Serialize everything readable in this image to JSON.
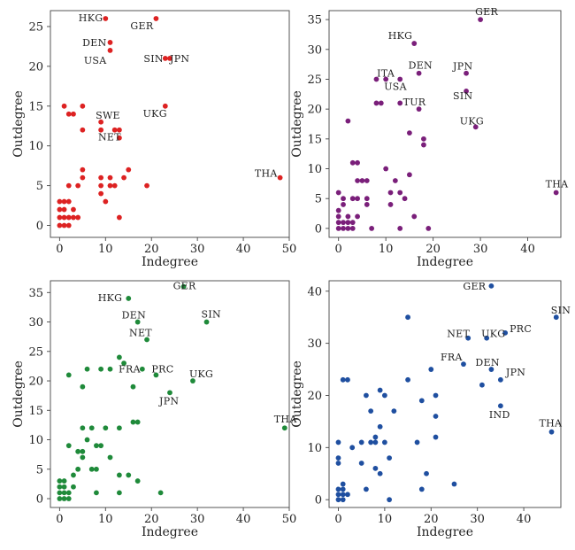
{
  "chart_data": [
    {
      "type": "scatter",
      "xlabel": "Indegree",
      "ylabel": "Outdegree",
      "xlim": [
        -2,
        50
      ],
      "ylim": [
        -1.5,
        27
      ],
      "xticks": [
        0,
        10,
        20,
        30,
        40,
        50
      ],
      "yticks": [
        0,
        5,
        10,
        15,
        20,
        25
      ],
      "color": "#dd2222",
      "points": [
        [
          0,
          0
        ],
        [
          1,
          0
        ],
        [
          2,
          0
        ],
        [
          0,
          1
        ],
        [
          1,
          1
        ],
        [
          2,
          1
        ],
        [
          3,
          1
        ],
        [
          4,
          1
        ],
        [
          0,
          2
        ],
        [
          1,
          2
        ],
        [
          3,
          2
        ],
        [
          0,
          3
        ],
        [
          1,
          3
        ],
        [
          2,
          5
        ],
        [
          4,
          5
        ],
        [
          2,
          3
        ],
        [
          5,
          6
        ],
        [
          5,
          7
        ],
        [
          9,
          4
        ],
        [
          9,
          5
        ],
        [
          9,
          6
        ],
        [
          10,
          3
        ],
        [
          11,
          5
        ],
        [
          11,
          6
        ],
        [
          12,
          5
        ],
        [
          13,
          1
        ],
        [
          14,
          6
        ],
        [
          15,
          7
        ],
        [
          19,
          5
        ],
        [
          1,
          15
        ],
        [
          2,
          14
        ],
        [
          3,
          14
        ],
        [
          5,
          15
        ],
        [
          5,
          12
        ],
        [
          9,
          12
        ],
        [
          9,
          13
        ],
        [
          12,
          12
        ],
        [
          13,
          12
        ],
        [
          13,
          11
        ],
        [
          10,
          26
        ],
        [
          21,
          26
        ],
        [
          11,
          23
        ],
        [
          11,
          22
        ],
        [
          23,
          21
        ],
        [
          24,
          21
        ],
        [
          23,
          15
        ],
        [
          48,
          6
        ]
      ],
      "labels": [
        {
          "text": "HKG",
          "x": 10,
          "y": 26
        },
        {
          "text": "GER",
          "x": 21,
          "y": 26
        },
        {
          "text": "DEN",
          "x": 11,
          "y": 23
        },
        {
          "text": "USA",
          "x": 11,
          "y": 22
        },
        {
          "text": "SIN",
          "x": 23,
          "y": 21
        },
        {
          "text": "JPN",
          "x": 24,
          "y": 21
        },
        {
          "text": "UKG",
          "x": 23,
          "y": 15
        },
        {
          "text": "SWE",
          "x": 9,
          "y": 13
        },
        {
          "text": "NET",
          "x": 13,
          "y": 11
        },
        {
          "text": "THA",
          "x": 48,
          "y": 6
        }
      ]
    },
    {
      "type": "scatter",
      "xlabel": "Indegree",
      "ylabel": "Outdegree",
      "xlim": [
        -2,
        47
      ],
      "ylim": [
        -1.5,
        36.5
      ],
      "xticks": [
        0,
        10,
        20,
        30,
        40
      ],
      "yticks": [
        0,
        5,
        10,
        15,
        20,
        25,
        30,
        35
      ],
      "color": "#7a1f7a",
      "points": [
        [
          0,
          0
        ],
        [
          1,
          0
        ],
        [
          2,
          0
        ],
        [
          3,
          0
        ],
        [
          0,
          1
        ],
        [
          1,
          1
        ],
        [
          2,
          1
        ],
        [
          3,
          1
        ],
        [
          0,
          2
        ],
        [
          2,
          2
        ],
        [
          4,
          2
        ],
        [
          0,
          3
        ],
        [
          1,
          4
        ],
        [
          0,
          6
        ],
        [
          1,
          5
        ],
        [
          3,
          5
        ],
        [
          2,
          18
        ],
        [
          3,
          11
        ],
        [
          4,
          11
        ],
        [
          4,
          8
        ],
        [
          4,
          5
        ],
        [
          5,
          8
        ],
        [
          6,
          5
        ],
        [
          6,
          4
        ],
        [
          6,
          8
        ],
        [
          7,
          0
        ],
        [
          8,
          21
        ],
        [
          8,
          25
        ],
        [
          9,
          21
        ],
        [
          10,
          10
        ],
        [
          10,
          25
        ],
        [
          11,
          4
        ],
        [
          11,
          6
        ],
        [
          12,
          8
        ],
        [
          13,
          6
        ],
        [
          13,
          0
        ],
        [
          13,
          21
        ],
        [
          13,
          25
        ],
        [
          14,
          5
        ],
        [
          15,
          9
        ],
        [
          15,
          16
        ],
        [
          16,
          31
        ],
        [
          16,
          2
        ],
        [
          17,
          20
        ],
        [
          17,
          26
        ],
        [
          18,
          14
        ],
        [
          18,
          15
        ],
        [
          19,
          0
        ],
        [
          27,
          26
        ],
        [
          27,
          23
        ],
        [
          29,
          17
        ],
        [
          30,
          35
        ],
        [
          46,
          6
        ]
      ],
      "labels": [
        {
          "text": "HKG",
          "x": 16,
          "y": 31
        },
        {
          "text": "GER",
          "x": 30,
          "y": 35
        },
        {
          "text": "ITA",
          "x": 10,
          "y": 25
        },
        {
          "text": "USA",
          "x": 13,
          "y": 25
        },
        {
          "text": "DEN",
          "x": 17,
          "y": 26
        },
        {
          "text": "JPN",
          "x": 27,
          "y": 26
        },
        {
          "text": "SIN",
          "x": 27,
          "y": 23
        },
        {
          "text": "TUR",
          "x": 17,
          "y": 20
        },
        {
          "text": "UKG",
          "x": 29,
          "y": 17
        },
        {
          "text": "THA",
          "x": 46,
          "y": 6
        }
      ]
    },
    {
      "type": "scatter",
      "xlabel": "Indegree",
      "ylabel": "Outdegree",
      "xlim": [
        -2,
        50
      ],
      "ylim": [
        -1.5,
        37
      ],
      "xticks": [
        0,
        10,
        20,
        30,
        40,
        50
      ],
      "yticks": [
        0,
        5,
        10,
        15,
        20,
        25,
        30,
        35
      ],
      "color": "#1f8a3a",
      "points": [
        [
          0,
          0
        ],
        [
          1,
          0
        ],
        [
          2,
          0
        ],
        [
          0,
          1
        ],
        [
          1,
          1
        ],
        [
          2,
          1
        ],
        [
          0,
          2
        ],
        [
          1,
          2
        ],
        [
          3,
          2
        ],
        [
          0,
          3
        ],
        [
          1,
          3
        ],
        [
          3,
          4
        ],
        [
          4,
          5
        ],
        [
          5,
          8
        ],
        [
          5,
          7
        ],
        [
          2,
          9
        ],
        [
          4,
          8
        ],
        [
          6,
          10
        ],
        [
          7,
          5
        ],
        [
          8,
          5
        ],
        [
          8,
          9
        ],
        [
          9,
          9
        ],
        [
          11,
          7
        ],
        [
          8,
          1
        ],
        [
          10,
          12
        ],
        [
          13,
          1
        ],
        [
          13,
          4
        ],
        [
          15,
          4
        ],
        [
          17,
          3
        ],
        [
          22,
          1
        ],
        [
          13,
          12
        ],
        [
          16,
          13
        ],
        [
          17,
          13
        ],
        [
          2,
          21
        ],
        [
          5,
          19
        ],
        [
          6,
          22
        ],
        [
          9,
          22
        ],
        [
          11,
          22
        ],
        [
          13,
          24
        ],
        [
          14,
          23
        ],
        [
          15,
          34
        ],
        [
          16,
          19
        ],
        [
          17,
          30
        ],
        [
          18,
          22
        ],
        [
          19,
          27
        ],
        [
          21,
          21
        ],
        [
          24,
          18
        ],
        [
          27,
          36
        ],
        [
          29,
          20
        ],
        [
          32,
          30
        ],
        [
          49,
          12
        ],
        [
          5,
          12
        ],
        [
          7,
          12
        ]
      ],
      "labels": [
        {
          "text": "HKG",
          "x": 15,
          "y": 34
        },
        {
          "text": "GER",
          "x": 27,
          "y": 36
        },
        {
          "text": "DEN",
          "x": 17,
          "y": 30
        },
        {
          "text": "SIN",
          "x": 32,
          "y": 30
        },
        {
          "text": "NET",
          "x": 19,
          "y": 27
        },
        {
          "text": "FRA",
          "x": 18,
          "y": 22
        },
        {
          "text": "PRC",
          "x": 21,
          "y": 21
        },
        {
          "text": "UKG",
          "x": 29,
          "y": 20
        },
        {
          "text": "JPN",
          "x": 24,
          "y": 18
        },
        {
          "text": "THA",
          "x": 49,
          "y": 12
        }
      ]
    },
    {
      "type": "scatter",
      "xlabel": "Indegree",
      "ylabel": "Outdegree",
      "xlim": [
        -2,
        48
      ],
      "ylim": [
        -1.5,
        42
      ],
      "xticks": [
        0,
        10,
        20,
        30,
        40
      ],
      "yticks": [
        0,
        10,
        20,
        30,
        40
      ],
      "color": "#1f4fa0",
      "points": [
        [
          0,
          0
        ],
        [
          1,
          0
        ],
        [
          0,
          1
        ],
        [
          1,
          1
        ],
        [
          2,
          1
        ],
        [
          0,
          2
        ],
        [
          1,
          2
        ],
        [
          1,
          3
        ],
        [
          0,
          7
        ],
        [
          0,
          8
        ],
        [
          0,
          11
        ],
        [
          1,
          23
        ],
        [
          2,
          23
        ],
        [
          3,
          10
        ],
        [
          5,
          11
        ],
        [
          5,
          7
        ],
        [
          6,
          20
        ],
        [
          6,
          2
        ],
        [
          7,
          11
        ],
        [
          7,
          17
        ],
        [
          8,
          11
        ],
        [
          8,
          12
        ],
        [
          8,
          6
        ],
        [
          9,
          5
        ],
        [
          9,
          14
        ],
        [
          9,
          21
        ],
        [
          10,
          20
        ],
        [
          10,
          11
        ],
        [
          11,
          8
        ],
        [
          11,
          0
        ],
        [
          12,
          17
        ],
        [
          15,
          35
        ],
        [
          15,
          23
        ],
        [
          17,
          11
        ],
        [
          18,
          2
        ],
        [
          18,
          19
        ],
        [
          19,
          5
        ],
        [
          20,
          25
        ],
        [
          21,
          20
        ],
        [
          21,
          12
        ],
        [
          21,
          16
        ],
        [
          25,
          3
        ],
        [
          27,
          26
        ],
        [
          28,
          31
        ],
        [
          31,
          22
        ],
        [
          32,
          31
        ],
        [
          33,
          25
        ],
        [
          33,
          41
        ],
        [
          35,
          23
        ],
        [
          35,
          18
        ],
        [
          36,
          32
        ],
        [
          46,
          13
        ],
        [
          47,
          35
        ]
      ],
      "labels": [
        {
          "text": "GER",
          "x": 33,
          "y": 41
        },
        {
          "text": "SIN",
          "x": 47,
          "y": 35
        },
        {
          "text": "NET",
          "x": 28,
          "y": 31
        },
        {
          "text": "UKG",
          "x": 32,
          "y": 31
        },
        {
          "text": "PRC",
          "x": 36,
          "y": 32
        },
        {
          "text": "FRA",
          "x": 27,
          "y": 26
        },
        {
          "text": "DEN",
          "x": 33,
          "y": 25
        },
        {
          "text": "JPN",
          "x": 35,
          "y": 23
        },
        {
          "text": "IND",
          "x": 35,
          "y": 18
        },
        {
          "text": "THA",
          "x": 46,
          "y": 13
        }
      ]
    }
  ]
}
